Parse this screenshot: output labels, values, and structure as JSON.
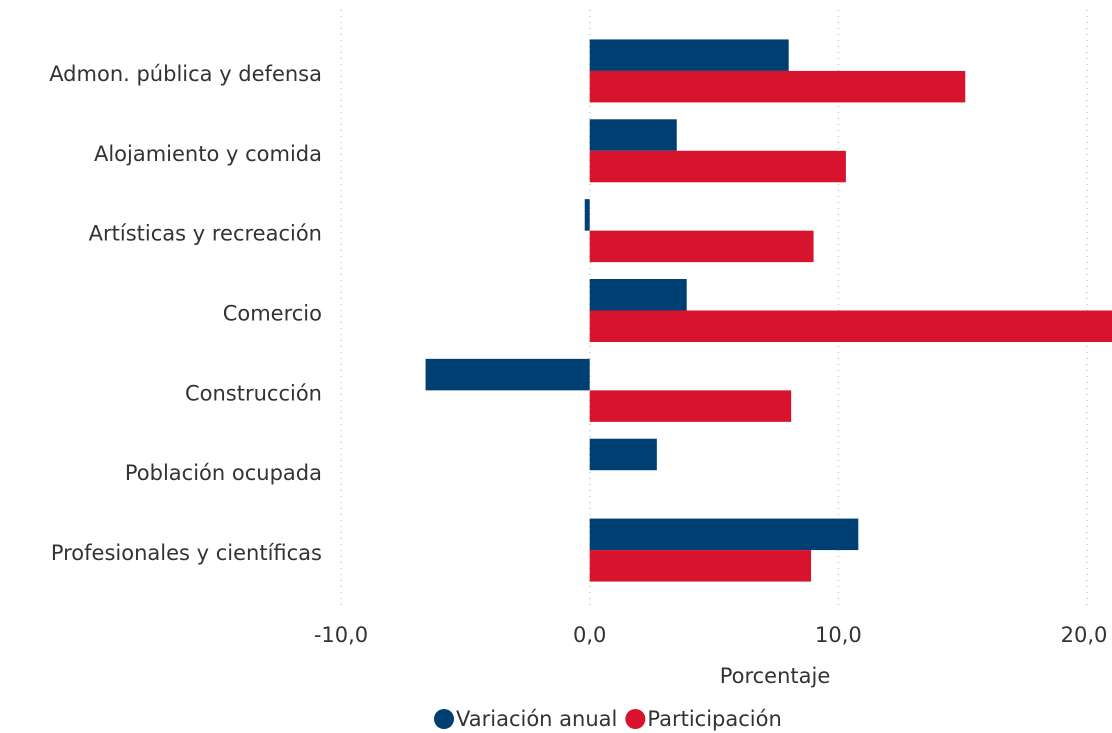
{
  "chart_data": {
    "type": "barh",
    "categories": [
      "Admon. pública y defensa",
      "Alojamiento y comida",
      "Artísticas y recreación",
      "Comercio",
      "Construcción",
      "Población ocupada",
      "Profesionales y científicas"
    ],
    "series": [
      {
        "name": "Variación anual",
        "color": "#003f72",
        "values": [
          8.0,
          3.5,
          -0.2,
          3.9,
          -6.6,
          2.7,
          10.8
        ]
      },
      {
        "name": "Participación",
        "color": "#d7132e",
        "values": [
          15.1,
          10.3,
          9.0,
          21.0,
          8.1,
          null,
          8.9
        ]
      }
    ],
    "x_label": "Porcentaje",
    "xlim": [
      -10,
      21
    ],
    "xticks": [
      {
        "value": -10,
        "label": "-10,0"
      },
      {
        "value": 0,
        "label": "0,0"
      },
      {
        "value": 10,
        "label": "10,0"
      },
      {
        "value": 20,
        "label": "20,0"
      }
    ],
    "grid": true
  }
}
